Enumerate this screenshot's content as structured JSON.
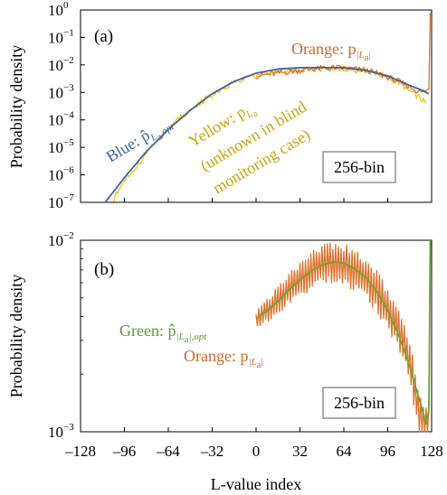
{
  "colors": {
    "blue": "#3b64a8",
    "yellow": "#f2c314",
    "orange": "#e0702a",
    "green": "#6aa636",
    "yellow_text": "#c9a40a",
    "orange_text": "#d06a26",
    "blue_text": "#3b64a8",
    "green_text": "#5a9a2e",
    "axis": "#000000"
  },
  "chart_data": [
    {
      "id": "a",
      "type": "line",
      "panel_label": "(a)",
      "ylabel": "Probability density",
      "xlabel": "",
      "scale": "log",
      "xlim": [
        -128,
        128
      ],
      "ylim_exp": [
        -7,
        0
      ],
      "ytick_exponents": [
        0,
        -1,
        -2,
        -3,
        -4,
        -5,
        -6,
        -7
      ],
      "annotations": {
        "blue": "Blue: p̂",
        "blue_sub": "L",
        "blue_sub2": "a",
        "blue_sub3": ",opt",
        "yellow": "Yellow: p",
        "yellow_sub": "L",
        "yellow_sub2": "a",
        "yellow_line2": "(unknown in blind",
        "yellow_line3": "monitoring case)",
        "orange": "Orange: p",
        "orange_sub": "|L",
        "orange_sub2": "a",
        "orange_sub3": "|"
      },
      "bin_label": "256-bin",
      "series": [
        {
          "name": "Blue",
          "style": "smooth",
          "x": [
            -110,
            -96,
            -80,
            -64,
            -48,
            -32,
            -16,
            0,
            16,
            32,
            48,
            56,
            64,
            80,
            96,
            112,
            120,
            126
          ],
          "y_exp": [
            -7.0,
            -6.1,
            -5.15,
            -4.35,
            -3.65,
            -3.05,
            -2.6,
            -2.3,
            -2.15,
            -2.1,
            -2.1,
            -2.1,
            -2.1,
            -2.2,
            -2.4,
            -2.75,
            -2.9,
            -3.05
          ]
        },
        {
          "name": "Yellow",
          "style": "noisy",
          "x": [
            -104,
            -96,
            -88,
            -80,
            -72,
            -64,
            -56,
            -48,
            -40,
            -32,
            -24,
            -16,
            -8,
            0,
            8,
            16,
            24,
            32,
            40,
            48,
            56,
            64,
            72,
            80,
            88,
            96,
            104,
            112,
            118,
            124
          ],
          "y_exp": [
            -6.9,
            -6.2,
            -5.75,
            -5.25,
            -4.75,
            -4.35,
            -3.95,
            -3.65,
            -3.35,
            -3.05,
            -2.85,
            -2.65,
            -2.5,
            -2.4,
            -2.3,
            -2.25,
            -2.2,
            -2.18,
            -2.15,
            -2.15,
            -2.15,
            -2.15,
            -2.2,
            -2.2,
            -2.3,
            -2.45,
            -2.65,
            -2.95,
            -3.15,
            -3.4
          ]
        },
        {
          "name": "Orange",
          "style": "noisy",
          "x": [
            0,
            8,
            16,
            24,
            32,
            40,
            48,
            56,
            64,
            72,
            80,
            88,
            96,
            104,
            112,
            120,
            126,
            127
          ],
          "y_exp": [
            -2.4,
            -2.35,
            -2.3,
            -2.25,
            -2.2,
            -2.15,
            -2.12,
            -2.1,
            -2.12,
            -2.15,
            -2.2,
            -2.3,
            -2.45,
            -2.6,
            -2.8,
            -3.0,
            -2.9,
            -0.1
          ]
        }
      ]
    },
    {
      "id": "b",
      "type": "line",
      "panel_label": "(b)",
      "ylabel": "Probability density",
      "xlabel": "L-value index",
      "scale": "log",
      "xlim": [
        -128,
        128
      ],
      "ylim_exp": [
        -3,
        -2
      ],
      "ytick_exponents": [
        -2,
        -3
      ],
      "xticks": [
        -128,
        -96,
        -64,
        -32,
        0,
        32,
        64,
        96,
        128
      ],
      "xtick_labels": [
        "–128",
        "–96",
        "–64",
        "–32",
        "0",
        "32",
        "64",
        "96",
        "128"
      ],
      "annotations": {
        "green": "Green: p̂",
        "green_sub": "|L",
        "green_sub2": "a",
        "green_sub3": "|,opt",
        "orange": "Orange: p",
        "orange_sub": "|L",
        "orange_sub2": "a",
        "orange_sub3": "|"
      },
      "bin_label": "256-bin",
      "series": [
        {
          "name": "Green",
          "style": "smooth",
          "x": [
            0,
            8,
            16,
            24,
            32,
            40,
            48,
            56,
            64,
            72,
            80,
            88,
            96,
            104,
            112,
            120,
            124,
            126,
            127
          ],
          "y": [
            0.0039,
            0.0043,
            0.0048,
            0.0055,
            0.0062,
            0.0069,
            0.0074,
            0.0077,
            0.0076,
            0.0071,
            0.0064,
            0.0054,
            0.0043,
            0.0032,
            0.0022,
            0.0014,
            0.0011,
            0.0013,
            0.01
          ]
        },
        {
          "name": "Orange",
          "style": "oscillating",
          "x": [
            0,
            8,
            16,
            24,
            32,
            40,
            48,
            56,
            64,
            72,
            80,
            88,
            96,
            104,
            112,
            116,
            120,
            124,
            126,
            127
          ],
          "y": [
            0.0038,
            0.0043,
            0.0049,
            0.0056,
            0.0063,
            0.007,
            0.0075,
            0.0077,
            0.0075,
            0.007,
            0.0063,
            0.0054,
            0.0044,
            0.0034,
            0.0024,
            0.0016,
            0.0012,
            0.00105,
            0.0011,
            0.01
          ]
        }
      ]
    }
  ]
}
